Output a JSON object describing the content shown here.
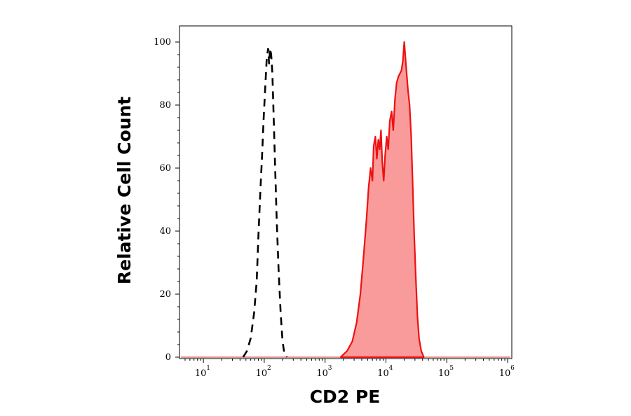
{
  "chart_data": {
    "type": "area",
    "title": "",
    "xlabel": "CD2 PE",
    "ylabel": "Relative Cell Count",
    "xscale": "log",
    "xlim": [
      5,
      1000000
    ],
    "ylim": [
      0,
      100
    ],
    "x_ticks": [
      {
        "base": "10",
        "exp": "1"
      },
      {
        "base": "10",
        "exp": "2"
      },
      {
        "base": "10",
        "exp": "3"
      },
      {
        "base": "10",
        "exp": "4"
      },
      {
        "base": "10",
        "exp": "5"
      },
      {
        "base": "10",
        "exp": "6"
      }
    ],
    "y_ticks": [
      "0",
      "20",
      "40",
      "60",
      "80",
      "100"
    ],
    "grid": false,
    "legend": "none",
    "series": [
      {
        "style": "dashed-outline",
        "color": "#000000",
        "points": [
          [
            45,
            0
          ],
          [
            52,
            2
          ],
          [
            60,
            6
          ],
          [
            68,
            14
          ],
          [
            75,
            24
          ],
          [
            80,
            38
          ],
          [
            86,
            52
          ],
          [
            92,
            64
          ],
          [
            98,
            76
          ],
          [
            104,
            86
          ],
          [
            110,
            95
          ],
          [
            116,
            98
          ],
          [
            120,
            93
          ],
          [
            125,
            98
          ],
          [
            130,
            96
          ],
          [
            136,
            90
          ],
          [
            142,
            78
          ],
          [
            150,
            62
          ],
          [
            160,
            44
          ],
          [
            172,
            28
          ],
          [
            186,
            14
          ],
          [
            200,
            5
          ],
          [
            215,
            1
          ],
          [
            235,
            0
          ]
        ]
      },
      {
        "style": "filled",
        "color": "#ee1111",
        "fill": "#f99b9b",
        "points": [
          [
            1800,
            0
          ],
          [
            2300,
            2
          ],
          [
            2800,
            5
          ],
          [
            3300,
            11
          ],
          [
            3800,
            20
          ],
          [
            4300,
            32
          ],
          [
            4800,
            44
          ],
          [
            5200,
            54
          ],
          [
            5600,
            60
          ],
          [
            6000,
            56
          ],
          [
            6300,
            67
          ],
          [
            6700,
            70
          ],
          [
            7100,
            63
          ],
          [
            7500,
            69
          ],
          [
            7900,
            66
          ],
          [
            8300,
            72
          ],
          [
            8700,
            62
          ],
          [
            9200,
            56
          ],
          [
            9700,
            64
          ],
          [
            10300,
            70
          ],
          [
            10900,
            66
          ],
          [
            11600,
            75
          ],
          [
            12400,
            78
          ],
          [
            13200,
            72
          ],
          [
            14100,
            82
          ],
          [
            15000,
            87
          ],
          [
            16000,
            89
          ],
          [
            17000,
            90
          ],
          [
            18000,
            91
          ],
          [
            19000,
            94
          ],
          [
            20000,
            100
          ],
          [
            21500,
            92
          ],
          [
            23000,
            85
          ],
          [
            24500,
            80
          ],
          [
            26000,
            70
          ],
          [
            27500,
            55
          ],
          [
            29000,
            40
          ],
          [
            31000,
            25
          ],
          [
            33000,
            13
          ],
          [
            35000,
            6
          ],
          [
            38000,
            2
          ],
          [
            42000,
            0
          ]
        ]
      }
    ]
  }
}
